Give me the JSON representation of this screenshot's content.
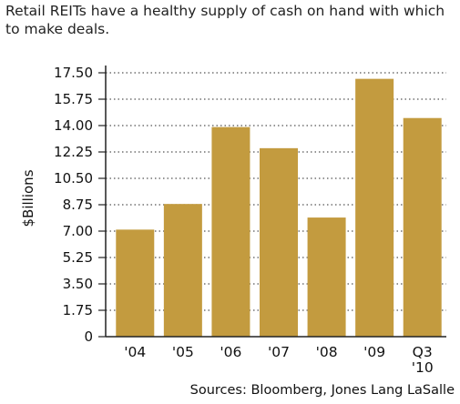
{
  "chart_data": {
    "type": "bar",
    "title": "Retail REITs have a healthy supply of cash on hand with which to make deals.",
    "ylabel": "$Billions",
    "xlabel": "",
    "categories": [
      "'04",
      "'05",
      "'06",
      "'07",
      "'08",
      "'09",
      "Q3\n'10"
    ],
    "values": [
      7.1,
      8.8,
      13.9,
      12.5,
      7.9,
      17.1,
      14.5
    ],
    "ylim": [
      0,
      17.5
    ],
    "yticks": [
      "0",
      "1.75",
      "3.50",
      "5.25",
      "7.00",
      "8.75",
      "10.50",
      "12.25",
      "14.00",
      "15.75",
      "17.50"
    ],
    "grid": true,
    "bar_color": "#c39b3f",
    "source": "Sources:  Bloomberg, Jones Lang LaSalle"
  }
}
